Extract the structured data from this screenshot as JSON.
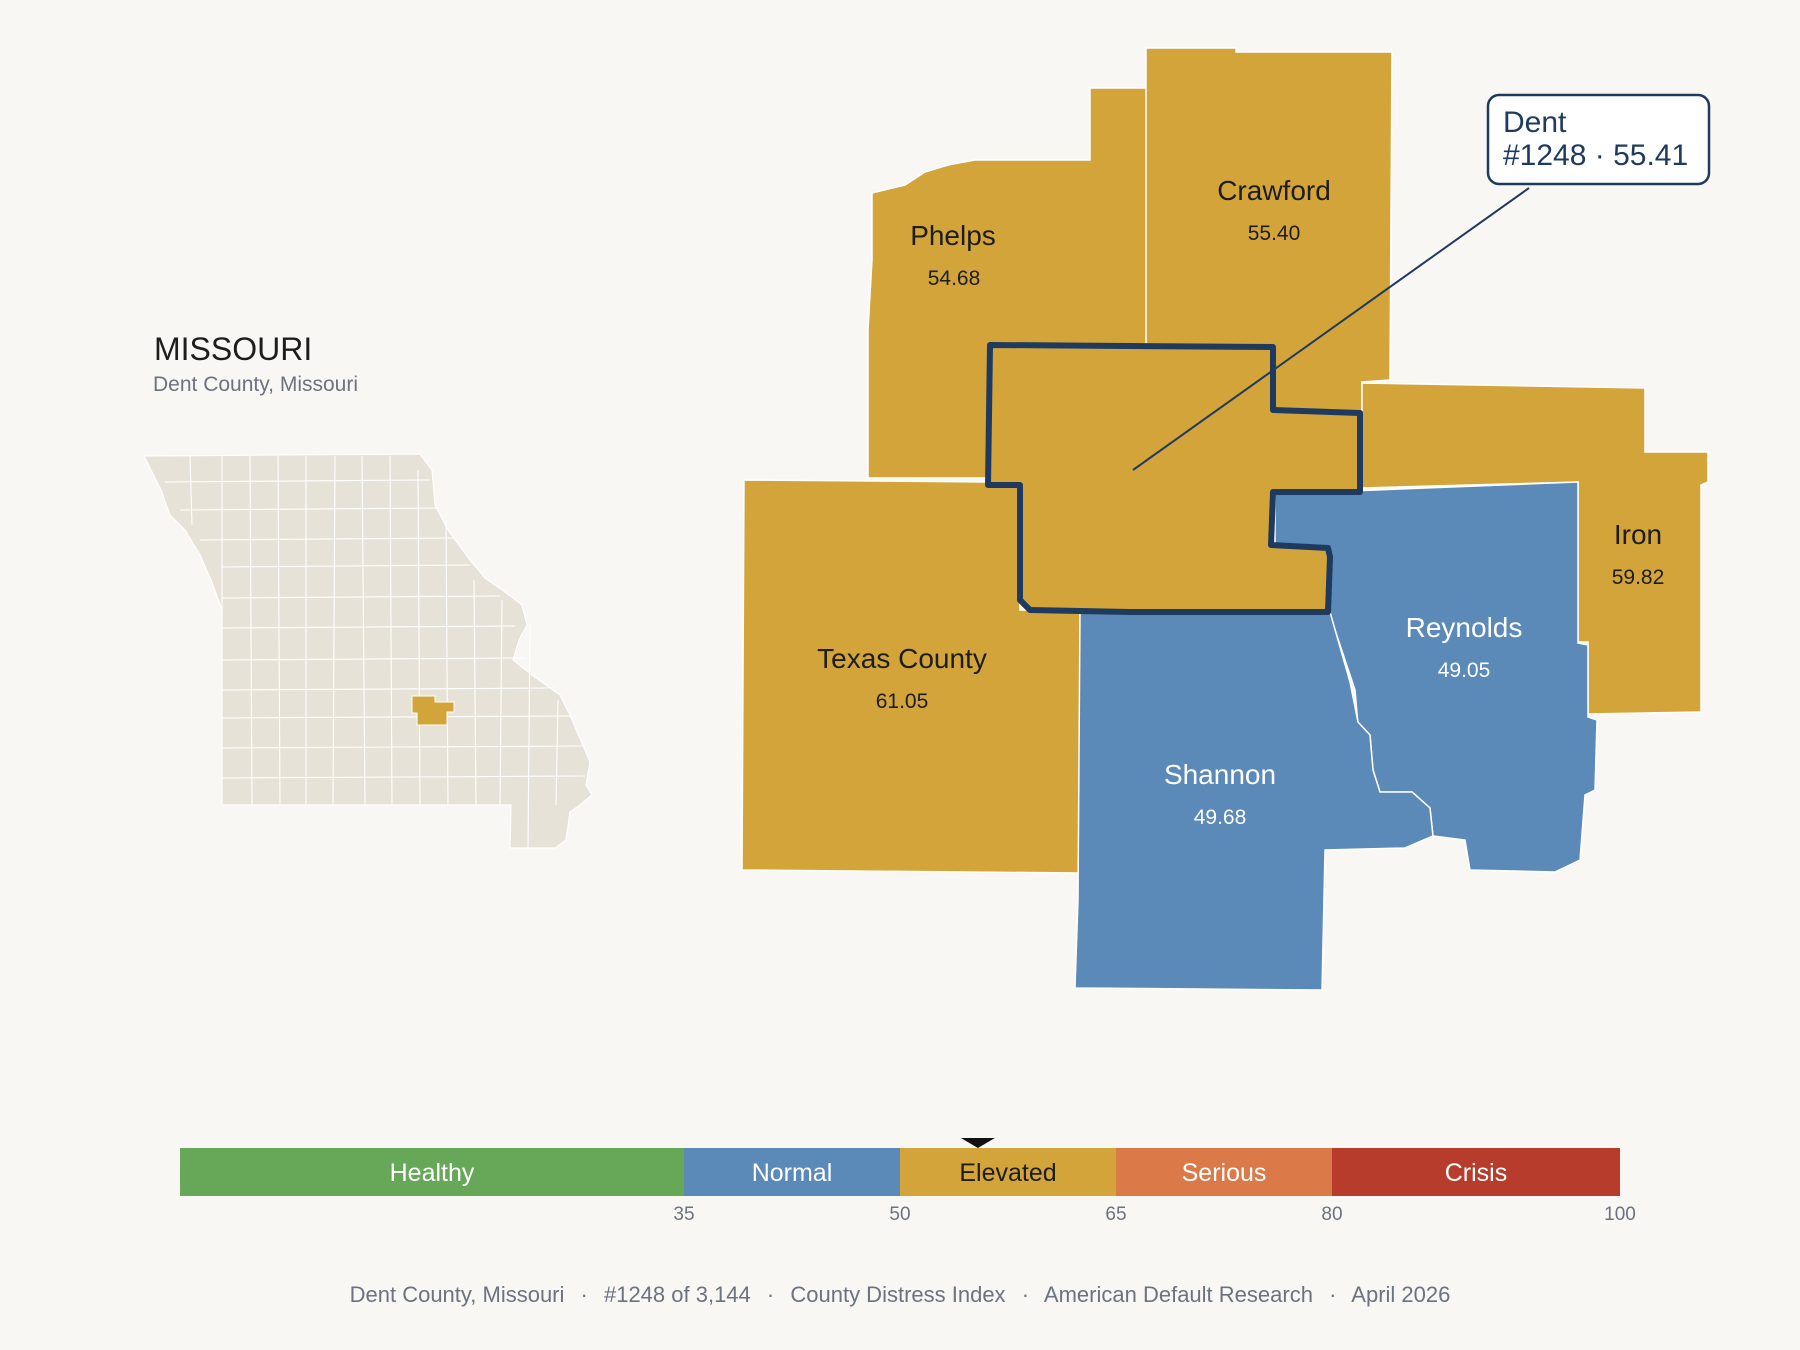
{
  "state": {
    "title": "MISSOURI",
    "subtitle": "Dent County, Missouri"
  },
  "colors": {
    "background": "#f9f7f3",
    "elevated": "#d3a43a",
    "normal": "#5b89b8",
    "state_fill": "#e7e2d7",
    "highlight_outline": "#1e3a5f"
  },
  "counties": {
    "phelps": {
      "name": "Phelps",
      "value": "54.68",
      "category": "Elevated"
    },
    "crawford": {
      "name": "Crawford",
      "value": "55.40",
      "category": "Elevated"
    },
    "texas": {
      "name": "Texas County",
      "value": "61.05",
      "category": "Elevated"
    },
    "iron": {
      "name": "Iron",
      "value": "59.82",
      "category": "Elevated"
    },
    "reynolds": {
      "name": "Reynolds",
      "value": "49.05",
      "category": "Normal"
    },
    "shannon": {
      "name": "Shannon",
      "value": "49.68",
      "category": "Normal"
    },
    "dent": {
      "name": "Dent",
      "value": "55.41",
      "category": "Elevated"
    }
  },
  "callout": {
    "line1": "Dent",
    "line2": "#1248 · 55.41"
  },
  "scale": {
    "marker_value": 55.41,
    "min": 0,
    "max": 100,
    "segments": [
      {
        "label": "Healthy",
        "from": 0,
        "to": 35,
        "color": "#67a758"
      },
      {
        "label": "Normal",
        "from": 35,
        "to": 50,
        "color": "#5b89b8"
      },
      {
        "label": "Elevated",
        "from": 50,
        "to": 65,
        "color": "#d3a43a"
      },
      {
        "label": "Serious",
        "from": 65,
        "to": 80,
        "color": "#db7948"
      },
      {
        "label": "Crisis",
        "from": 80,
        "to": 100,
        "color": "#b83c2b"
      }
    ],
    "ticks": [
      "35",
      "50",
      "65",
      "80",
      "100"
    ]
  },
  "footer": {
    "county": "Dent County, Missouri",
    "rank": "#1248 of 3,144",
    "index": "County Distress Index",
    "source": "American Default Research",
    "date": "April 2026",
    "separator": "·"
  }
}
